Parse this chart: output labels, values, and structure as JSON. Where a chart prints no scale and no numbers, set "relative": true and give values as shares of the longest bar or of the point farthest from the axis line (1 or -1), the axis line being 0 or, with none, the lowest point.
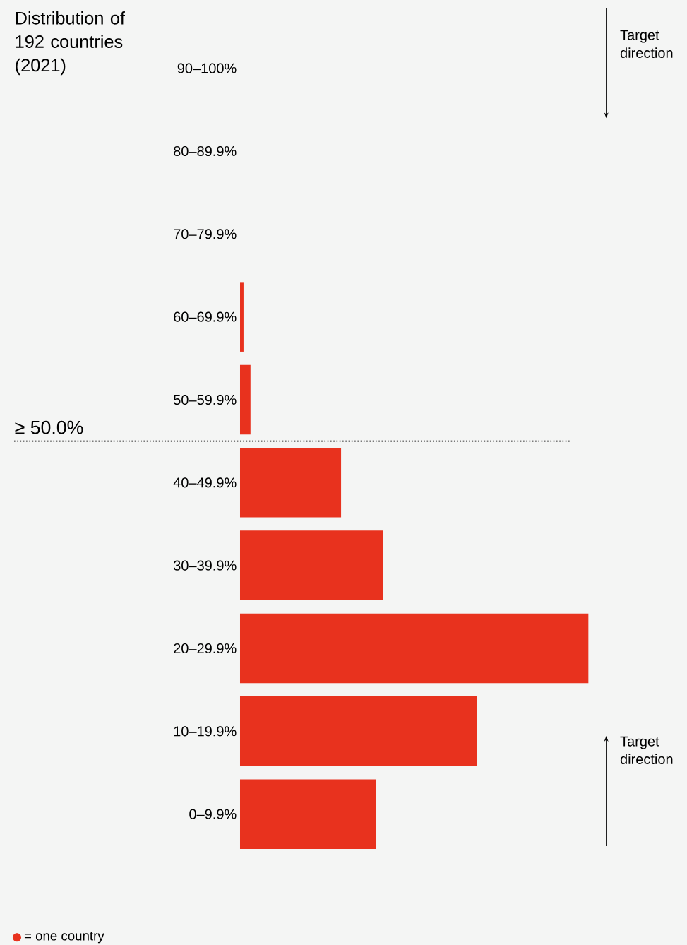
{
  "chart_data": {
    "type": "bar",
    "orientation": "horizontal",
    "relative": true,
    "title": "Distribution of 192 countries (2021)",
    "categories": [
      "90–100%",
      "80–89.9%",
      "70–79.9%",
      "60–69.9%",
      "50–59.9%",
      "40–49.9%",
      "30–39.9%",
      "20–29.9%",
      "10–19.9%",
      "0–9.9%"
    ],
    "values": [
      0,
      0,
      0,
      0.01,
      0.03,
      0.29,
      0.41,
      1,
      0.68,
      0.39
    ],
    "color": "#e8321e",
    "annotations": [
      "≥ 50.0%",
      "Target direction",
      "Target direction",
      "= one country"
    ]
  }
}
